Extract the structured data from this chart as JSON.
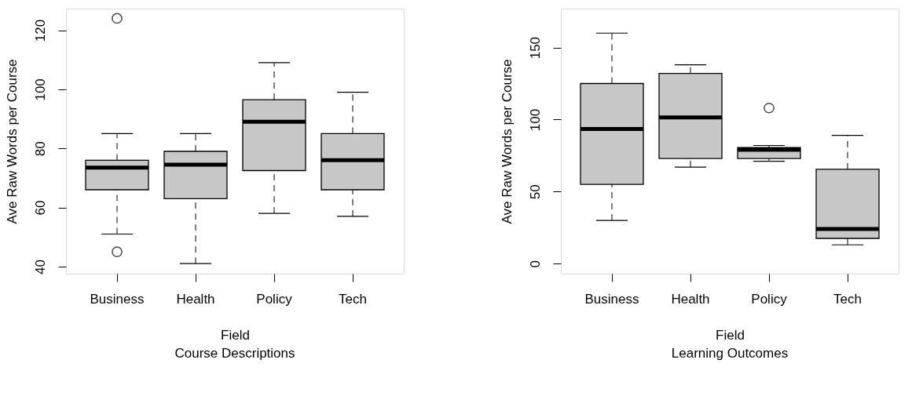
{
  "chart_data": [
    {
      "type": "box",
      "title": "Course Descriptions",
      "xlabel": "Field",
      "ylabel": "Ave Raw Words per Course",
      "categories": [
        "Business",
        "Health",
        "Policy",
        "Tech"
      ],
      "color": "#c8c8c8",
      "marker": "circle",
      "grid": false,
      "ylim": [
        37.6,
        127.3
      ],
      "yticks": [
        40,
        60,
        80,
        100,
        120
      ],
      "boxes": [
        {
          "low": 51,
          "q1": 66,
          "median": 73.5,
          "q3": 76,
          "high": 85,
          "outliers": [
            124,
            45
          ]
        },
        {
          "low": 41,
          "q1": 63,
          "median": 74.5,
          "q3": 79,
          "high": 85
        },
        {
          "low": 58,
          "q1": 72.5,
          "median": 89,
          "q3": 96.5,
          "high": 109
        },
        {
          "low": 57,
          "q1": 66,
          "median": 76,
          "q3": 85,
          "high": 99
        }
      ]
    },
    {
      "type": "box",
      "title": "Learning Outcomes",
      "xlabel": "Field",
      "ylabel": "Ave Raw Words per Course",
      "categories": [
        "Business",
        "Health",
        "Policy",
        "Tech"
      ],
      "color": "#c8c8c8",
      "marker": "circle",
      "grid": false,
      "ylim": [
        -7,
        177
      ],
      "yticks": [
        0,
        50,
        100,
        150
      ],
      "boxes": [
        {
          "low": 30,
          "q1": 55,
          "median": 93.5,
          "q3": 125,
          "high": 160
        },
        {
          "low": 67,
          "q1": 73,
          "median": 101.5,
          "q3": 132,
          "high": 138
        },
        {
          "low": 71,
          "q1": 73,
          "median": 79,
          "q3": 80.5,
          "high": 82,
          "outliers": [
            108
          ]
        },
        {
          "low": 13,
          "q1": 17.5,
          "median": 24,
          "q3": 65.5,
          "high": 89
        }
      ]
    }
  ]
}
